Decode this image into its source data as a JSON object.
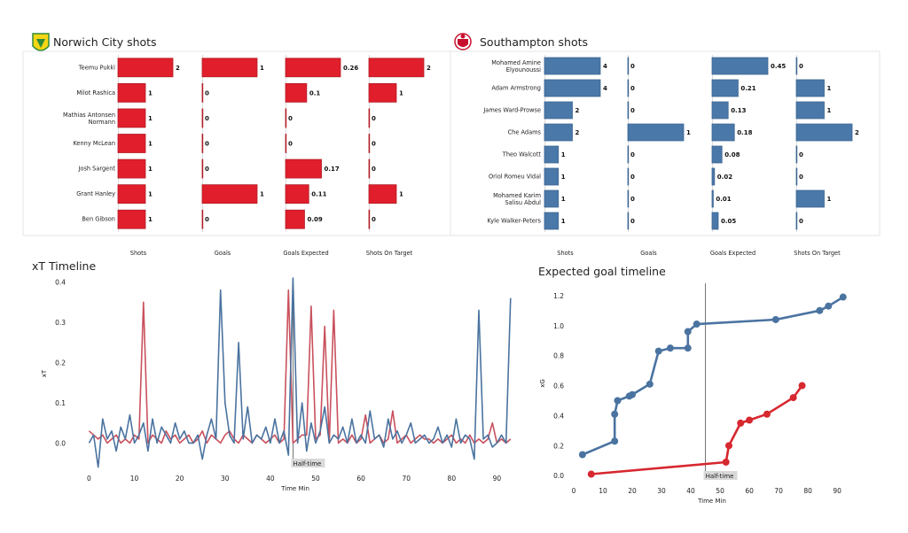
{
  "chart_data": [
    {
      "type": "bar",
      "title": "Norwich City shots",
      "color": "#e01e2c",
      "players": [
        "Teemu Pukki",
        "Milot Rashica",
        "Mathias  Antonsen Normann",
        "Kenny McLean",
        "Josh Sargent",
        "Grant Hanley",
        "Ben Gibson"
      ],
      "metrics": [
        "Shots",
        "Goals",
        "Goals Expected",
        "Shots On Target"
      ],
      "values": {
        "Shots": [
          2,
          1,
          1,
          1,
          1,
          1,
          1
        ],
        "Goals": [
          1,
          0,
          0,
          0,
          0,
          1,
          0
        ],
        "Goals Expected": [
          0.26,
          0.1,
          0,
          0,
          0.17,
          0.11,
          0.09
        ],
        "Shots On Target": [
          2,
          1,
          0,
          0,
          0,
          1,
          0
        ]
      },
      "labels": {
        "Shots": [
          "2",
          "1",
          "1",
          "1",
          "1",
          "1",
          "1"
        ],
        "Goals": [
          "1",
          "0",
          "0",
          "0",
          "0",
          "1",
          "0"
        ],
        "Goals Expected": [
          "0.26",
          "0.1",
          "0",
          "0",
          "0.17",
          "0.11",
          "0.09"
        ],
        "Shots On Target": [
          "2",
          "1",
          "0",
          "0",
          "0",
          "1",
          "0"
        ]
      }
    },
    {
      "type": "bar",
      "title": "Southampton shots",
      "color": "#4a78a8",
      "players": [
        "Mohamed Amine Elyounoussi",
        "Adam Armstrong",
        "James  Ward-Prowse",
        "Che Adams",
        "Theo  Walcott",
        "Oriol Romeu Vidal",
        "Mohamed Karim Salisu Abdul",
        "Kyle Walker-Peters"
      ],
      "metrics": [
        "Shots",
        "Goals",
        "Goals Expected",
        "Shots On Target"
      ],
      "values": {
        "Shots": [
          4,
          4,
          2,
          2,
          1,
          1,
          1,
          1
        ],
        "Goals": [
          0,
          0,
          0,
          1,
          0,
          0,
          0,
          0
        ],
        "Goals Expected": [
          0.45,
          0.21,
          0.13,
          0.18,
          0.08,
          0.02,
          0.01,
          0.05
        ],
        "Shots On Target": [
          0,
          1,
          1,
          2,
          0,
          0,
          1,
          0
        ]
      },
      "labels": {
        "Shots": [
          "4",
          "4",
          "2",
          "2",
          "1",
          "1",
          "1",
          "1"
        ],
        "Goals": [
          "0",
          "0",
          "0",
          "1",
          "0",
          "0",
          "0",
          "0"
        ],
        "Goals Expected": [
          "0.45",
          "0.21",
          "0.13",
          "0.18",
          "0.08",
          "0.02",
          "0.01",
          "0.05"
        ],
        "Shots On Target": [
          "0",
          "1",
          "1",
          "2",
          "0",
          "0",
          "1",
          "0"
        ]
      }
    },
    {
      "type": "line",
      "title": "xT Timeline",
      "xlabel": "Time Min",
      "ylabel": "xT",
      "xlim": [
        -4,
        95
      ],
      "ylim": [
        -0.065,
        0.41
      ],
      "xticks": [
        0,
        10,
        20,
        30,
        40,
        50,
        60,
        70,
        80,
        90
      ],
      "yticks": [
        0.0,
        0.1,
        0.2,
        0.3,
        0.4
      ],
      "ytick_labels": [
        "0.0",
        "0.1",
        "0.2",
        "0.3",
        "0.4"
      ],
      "annotation": {
        "text": "Half-time",
        "x": 45
      },
      "series": [
        {
          "color": "#c9515d",
          "x": [
            0,
            1,
            2,
            3,
            4,
            5,
            6,
            7,
            8,
            9,
            10,
            11,
            12,
            13,
            14,
            15,
            16,
            17,
            18,
            19,
            20,
            21,
            22,
            23,
            24,
            25,
            26,
            27,
            28,
            29,
            30,
            31,
            32,
            33,
            34,
            35,
            36,
            37,
            38,
            39,
            40,
            41,
            42,
            43,
            44,
            45,
            46,
            47,
            48,
            49,
            50,
            51,
            52,
            53,
            54,
            55,
            56,
            57,
            58,
            59,
            60,
            61,
            62,
            63,
            64,
            65,
            66,
            67,
            68,
            69,
            70,
            71,
            72,
            73,
            74,
            75,
            76,
            77,
            78,
            79,
            80,
            81,
            82,
            83,
            84,
            85,
            86,
            87,
            88,
            89,
            90,
            91,
            92,
            93
          ],
          "y": [
            0.03,
            0.02,
            0.01,
            0.02,
            0.0,
            0.01,
            0.02,
            0.0,
            0.01,
            0.0,
            0.02,
            0.01,
            0.35,
            0.0,
            0.02,
            0.01,
            0.0,
            0.03,
            0.01,
            0.02,
            0.0,
            0.01,
            0.02,
            0.0,
            0.01,
            0.03,
            0.0,
            0.02,
            0.01,
            0.0,
            0.02,
            0.03,
            0.01,
            0.0,
            0.02,
            0.01,
            0.0,
            0.02,
            0.01,
            0.0,
            0.01,
            0.02,
            0.0,
            0.01,
            0.38,
            0.0,
            0.01,
            0.02,
            0.02,
            0.34,
            0.01,
            0.02,
            0.29,
            0.0,
            0.33,
            0.0,
            0.01,
            0.0,
            0.02,
            0.0,
            0.01,
            0.07,
            0.0,
            0.01,
            0.02,
            0.0,
            0.01,
            0.08,
            0.0,
            0.01,
            0.02,
            0.0,
            0.01,
            0.02,
            0.01,
            0.01,
            0.0,
            0.01,
            0.0,
            0.01,
            0.02,
            0.0,
            0.01,
            0.0,
            0.02,
            0.0,
            0.01,
            0.0,
            0.01,
            0.05,
            0.0,
            0.01,
            0.0,
            0.01
          ]
        },
        {
          "color": "#4a73a0",
          "x": [
            0,
            1,
            2,
            3,
            4,
            5,
            6,
            7,
            8,
            9,
            10,
            11,
            12,
            13,
            14,
            15,
            16,
            17,
            18,
            19,
            20,
            21,
            22,
            23,
            24,
            25,
            26,
            27,
            28,
            29,
            30,
            31,
            32,
            33,
            34,
            35,
            36,
            37,
            38,
            39,
            40,
            41,
            42,
            43,
            44,
            45,
            46,
            47,
            48,
            49,
            50,
            51,
            52,
            53,
            54,
            55,
            56,
            57,
            58,
            59,
            60,
            61,
            62,
            63,
            64,
            65,
            66,
            67,
            68,
            69,
            70,
            71,
            72,
            73,
            74,
            75,
            76,
            77,
            78,
            79,
            80,
            81,
            82,
            83,
            84,
            85,
            86,
            87,
            88,
            89,
            90,
            91,
            92,
            93
          ],
          "y": [
            0.0,
            0.02,
            -0.06,
            0.06,
            0.01,
            0.03,
            -0.02,
            0.04,
            0.01,
            0.07,
            0.0,
            0.02,
            0.05,
            -0.02,
            0.06,
            0.0,
            0.04,
            0.02,
            0.0,
            0.05,
            0.01,
            0.03,
            0.0,
            0.0,
            0.02,
            -0.04,
            0.02,
            0.06,
            0.01,
            0.38,
            0.1,
            0.02,
            0.0,
            0.25,
            0.01,
            0.09,
            0.0,
            0.02,
            0.01,
            0.04,
            0.0,
            0.06,
            0.0,
            0.03,
            -0.03,
            0.41,
            0.0,
            0.1,
            -0.02,
            0.05,
            0.0,
            0.03,
            0.09,
            0.0,
            0.02,
            0.01,
            0.04,
            0.0,
            0.06,
            0.0,
            0.02,
            0.0,
            0.08,
            0.01,
            0.02,
            -0.01,
            0.06,
            0.01,
            0.03,
            0.0,
            0.02,
            0.05,
            0.0,
            0.01,
            0.02,
            0.0,
            0.01,
            0.04,
            0.0,
            0.02,
            -0.01,
            0.06,
            0.0,
            0.02,
            0.01,
            -0.04,
            0.33,
            0.01,
            0.02,
            -0.01,
            0.0,
            0.02,
            0.0,
            0.36
          ]
        }
      ]
    },
    {
      "type": "line",
      "title": "Expected goal timeline",
      "xlabel": "Time Min",
      "ylabel": "xG",
      "xlim": [
        -1.5,
        96
      ],
      "ylim": [
        -0.04,
        1.27
      ],
      "xticks": [
        0,
        10,
        20,
        30,
        40,
        50,
        60,
        70,
        80,
        90
      ],
      "yticks": [
        0.0,
        0.2,
        0.4,
        0.6,
        0.8,
        1.0,
        1.2
      ],
      "ytick_labels": [
        "0.0",
        "0.2",
        "0.4",
        "0.6",
        "0.8",
        "1.0",
        "1.2"
      ],
      "annotation": {
        "text": "Half-time",
        "x": 45
      },
      "series": [
        {
          "color": "#4a73a0",
          "x": [
            3,
            14,
            14,
            15,
            19,
            20,
            26,
            29,
            33,
            39,
            39,
            42,
            69,
            84,
            87,
            92
          ],
          "y": [
            0.14,
            0.23,
            0.41,
            0.5,
            0.53,
            0.54,
            0.61,
            0.83,
            0.85,
            0.85,
            0.96,
            1.01,
            1.04,
            1.1,
            1.13,
            1.19
          ]
        },
        {
          "color": "#d7272f",
          "x": [
            6,
            52,
            53,
            57,
            60,
            66,
            75,
            78
          ],
          "y": [
            0.01,
            0.09,
            0.2,
            0.35,
            0.37,
            0.41,
            0.52,
            0.6
          ]
        }
      ]
    }
  ]
}
